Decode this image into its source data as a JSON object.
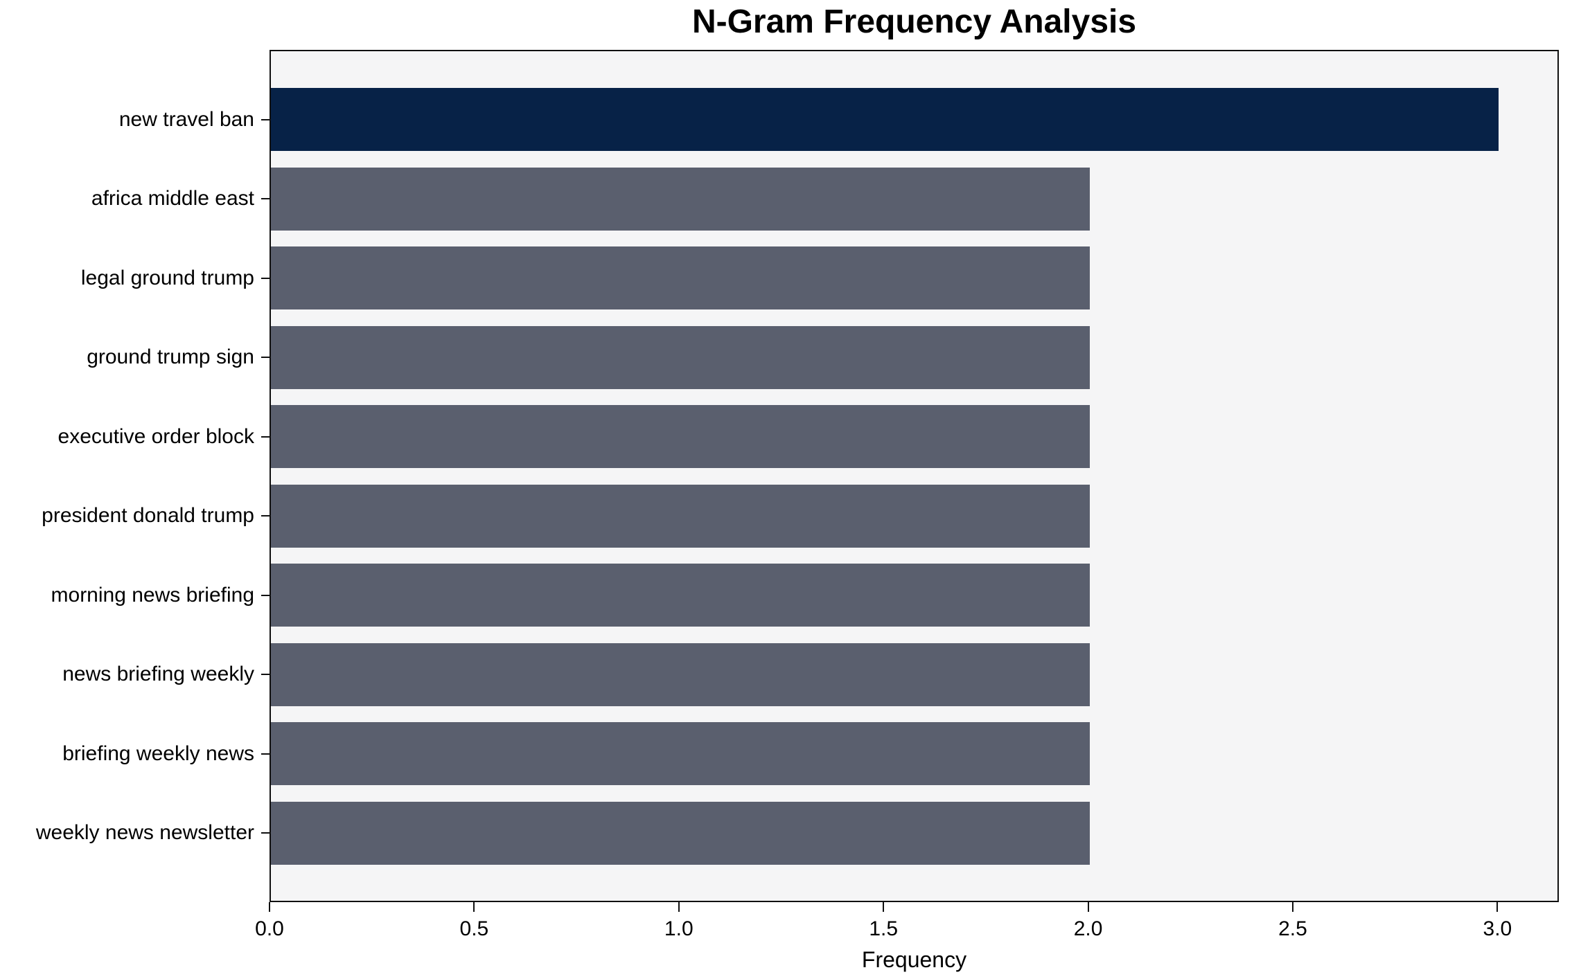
{
  "chart_data": {
    "type": "bar",
    "orientation": "horizontal",
    "title": "N-Gram Frequency Analysis",
    "xlabel": "Frequency",
    "ylabel": "",
    "categories": [
      "new travel ban",
      "africa middle east",
      "legal ground trump",
      "ground trump sign",
      "executive order block",
      "president donald trump",
      "morning news briefing",
      "news briefing weekly",
      "briefing weekly news",
      "weekly news newsletter"
    ],
    "values": [
      3,
      2,
      2,
      2,
      2,
      2,
      2,
      2,
      2,
      2
    ],
    "xlim": [
      0,
      3.15
    ],
    "xticks": [
      0.0,
      0.5,
      1.0,
      1.5,
      2.0,
      2.5,
      3.0
    ],
    "xtick_labels": [
      "0.0",
      "0.5",
      "1.0",
      "1.5",
      "2.0",
      "2.5",
      "3.0"
    ],
    "colors": {
      "highlight_bar": "#072247",
      "default_bar": "#5a5f6e",
      "plot_background": "#f5f5f6",
      "figure_background": "#ffffff",
      "spine": "#101010",
      "text": "#000000"
    },
    "grid": false,
    "legend": null
  }
}
